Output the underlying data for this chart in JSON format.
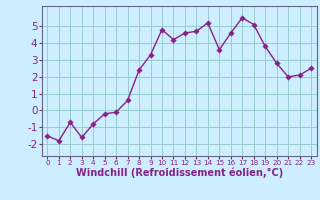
{
  "x": [
    0,
    1,
    2,
    3,
    4,
    5,
    6,
    7,
    8,
    9,
    10,
    11,
    12,
    13,
    14,
    15,
    16,
    17,
    18,
    19,
    20,
    21,
    22,
    23
  ],
  "y": [
    -1.5,
    -1.8,
    -0.7,
    -1.6,
    -0.8,
    -0.2,
    -0.1,
    0.6,
    2.4,
    3.3,
    4.8,
    4.2,
    4.6,
    4.7,
    5.2,
    3.6,
    4.6,
    5.5,
    5.1,
    3.8,
    2.8,
    2.0,
    2.1,
    2.5
  ],
  "line_color": "#882288",
  "marker_color": "#882288",
  "bg_color": "#cceeff",
  "grid_color": "#99cccc",
  "xlabel": "Windchill (Refroidissement éolien,°C)",
  "xlim": [
    -0.5,
    23.5
  ],
  "ylim": [
    -2.7,
    6.2
  ],
  "yticks": [
    -2,
    -1,
    0,
    1,
    2,
    3,
    4,
    5
  ],
  "xticks": [
    0,
    1,
    2,
    3,
    4,
    5,
    6,
    7,
    8,
    9,
    10,
    11,
    12,
    13,
    14,
    15,
    16,
    17,
    18,
    19,
    20,
    21,
    22,
    23
  ],
  "xlabel_fontsize": 7.0,
  "ytick_fontsize": 7.5,
  "xtick_fontsize": 5.2,
  "marker_size": 2.8,
  "line_width": 1.0,
  "spine_color": "#666688"
}
